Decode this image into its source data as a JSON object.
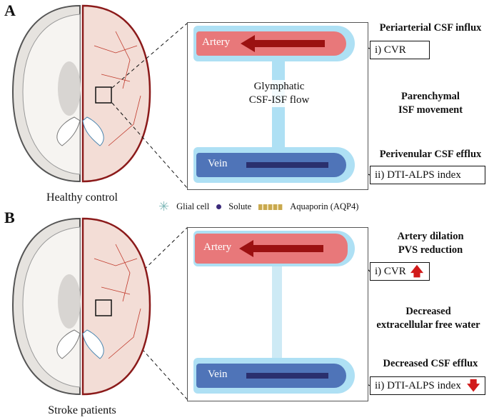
{
  "panels": [
    {
      "label": "A",
      "caption": "Healthy control",
      "artery": "Artery",
      "vein": "Vein",
      "flow_label": [
        "Glymphatic",
        "CSF-ISF flow"
      ],
      "right": {
        "top": "Periarterial CSF influx",
        "cvr": "i) CVR",
        "middle": [
          "Parenchymal",
          "ISF movement"
        ],
        "bottom": "Perivenular CSF efflux",
        "alps": "ii) DTI-ALPS index"
      }
    },
    {
      "label": "B",
      "caption": "Stroke patients",
      "artery": "Artery",
      "vein": "Vein",
      "right": {
        "top": [
          "Artery dilation",
          "PVS reduction"
        ],
        "cvr": "i) CVR",
        "cvr_trend": "up",
        "middle": [
          "Decreased",
          "extracellular free water"
        ],
        "bottom": "Decreased CSF efflux",
        "alps": "ii) DTI-ALPS index",
        "alps_trend": "down"
      }
    }
  ],
  "legend": [
    {
      "icon": "glial-cell-icon",
      "label": "Glial cell"
    },
    {
      "icon": "solute-icon",
      "label": "Solute"
    },
    {
      "icon": "aquaporin-icon",
      "label": "Aquaporin (AQP4)"
    }
  ],
  "colors": {
    "artery": "#e8787a",
    "vein": "#4f74b8",
    "csf": "#aee0f4",
    "trend": "#d11a1a",
    "brain_outline": "#8b1a1a"
  }
}
